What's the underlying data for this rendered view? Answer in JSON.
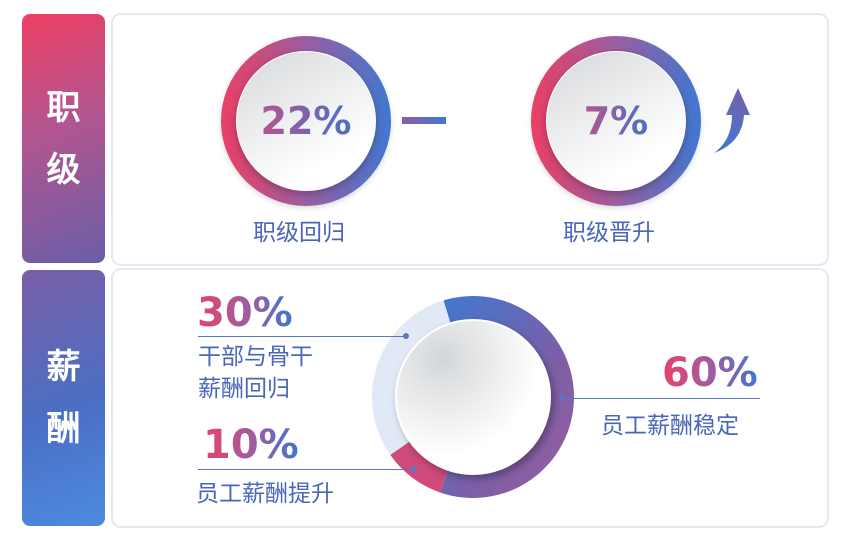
{
  "sections": {
    "rank": "职级",
    "salary": "薪酬"
  },
  "rank": {
    "items": [
      {
        "value": "22%",
        "label": "职级回归",
        "trend": "flat"
      },
      {
        "value": "7%",
        "label": "职级晋升",
        "trend": "up"
      }
    ]
  },
  "chart_data": {
    "type": "pie",
    "variant": "donut",
    "categories": [
      "员工薪酬稳定",
      "员工薪酬提升",
      "干部与骨干薪酬回归"
    ],
    "values": [
      60,
      10,
      30
    ],
    "labels": [
      "60%",
      "10%",
      "30%"
    ],
    "colors": [
      "#3f78d2→#9a5ea0",
      "#d04a7c",
      "#e1e9f7"
    ],
    "label_lines": [
      "员工薪酬稳定",
      "员工薪酬提升",
      [
        "干部与骨干",
        "薪酬回归"
      ]
    ]
  }
}
